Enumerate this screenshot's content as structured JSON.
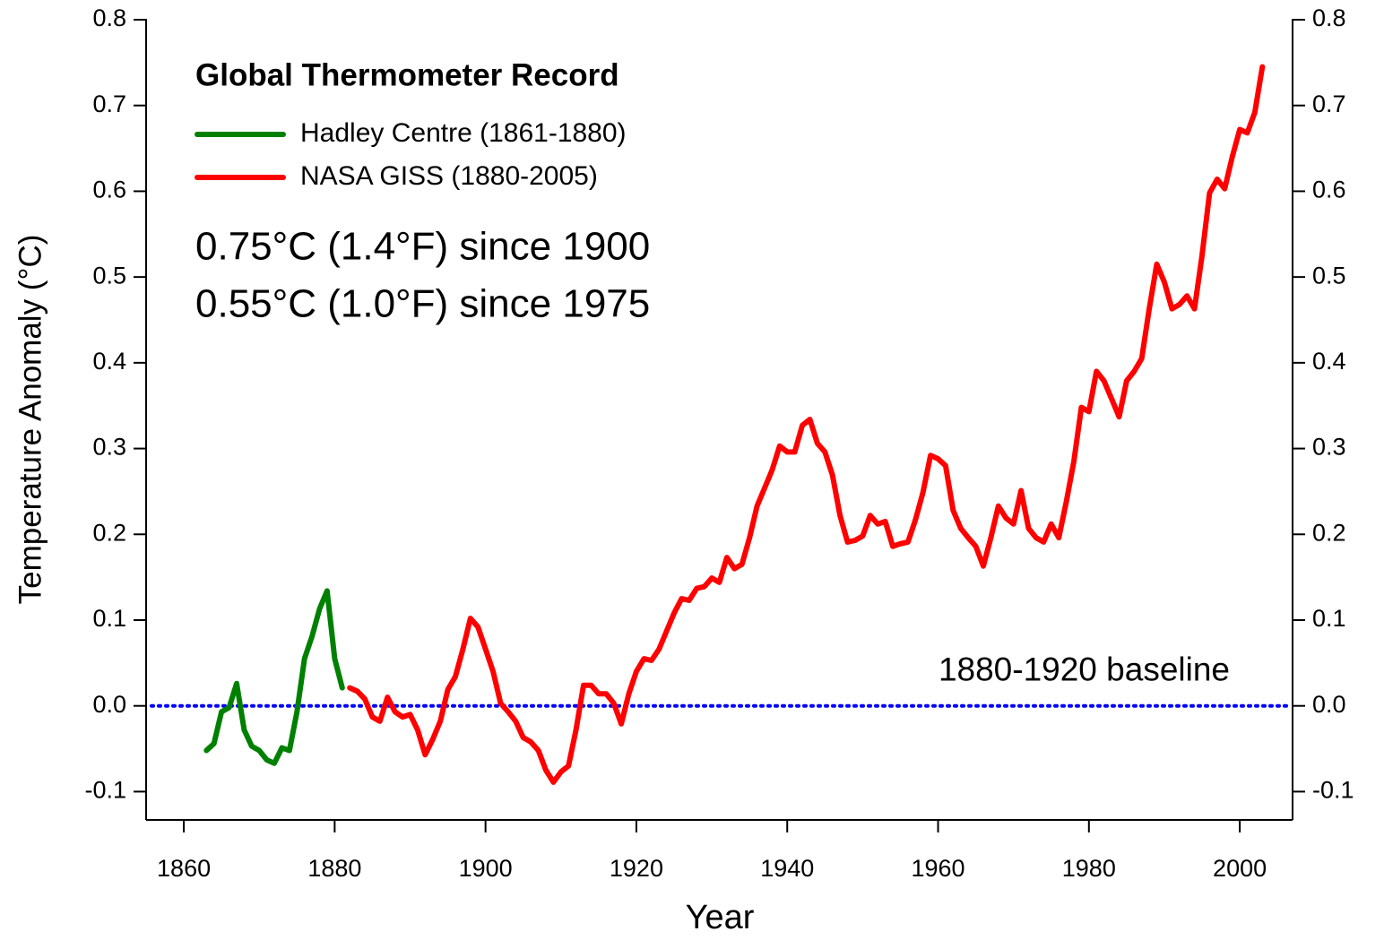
{
  "chart_data": {
    "type": "line",
    "title": "Global Thermometer Record",
    "xlabel": "Year",
    "ylabel": "Temperature Anomaly (°C)",
    "annotations": [
      "0.75°C (1.4°F) since 1900",
      "0.55°C (1.0°F)  since 1975"
    ],
    "baseline": {
      "value": 0,
      "label": "1880-1920 baseline",
      "color": "#0000ff"
    },
    "xlim": [
      1855,
      2007
    ],
    "xticks": [
      1860,
      1880,
      1900,
      1920,
      1940,
      1960,
      1980,
      2000
    ],
    "ylim": [
      -0.133,
      0.8
    ],
    "yticks": [
      -0.1,
      {
        "value": 0,
        "label": "0.0"
      },
      0.1,
      0.2,
      0.3,
      0.4,
      0.5,
      0.6,
      0.7,
      0.8
    ],
    "right_axis_ticks": true,
    "series": [
      {
        "name": "Hadley Centre (1861-1880)",
        "color": "#008000",
        "x": [
          1863,
          1864,
          1865,
          1866,
          1867,
          1868,
          1869,
          1870,
          1871,
          1872,
          1873,
          1874,
          1875,
          1876,
          1877,
          1878,
          1879,
          1880,
          1881
        ],
        "values": [
          -0.052,
          -0.044,
          -0.007,
          -0.002,
          0.026,
          -0.028,
          -0.047,
          -0.052,
          -0.063,
          -0.067,
          -0.049,
          -0.052,
          -0.007,
          0.055,
          0.081,
          0.113,
          0.134,
          0.055,
          0.021
        ]
      },
      {
        "name": "NASA GISS (1880-2005)",
        "color": "#ff0000",
        "x": [
          1882,
          1883,
          1884,
          1885,
          1886,
          1887,
          1888,
          1889,
          1890,
          1891,
          1892,
          1893,
          1894,
          1895,
          1896,
          1897,
          1898,
          1899,
          1900,
          1901,
          1902,
          1903,
          1904,
          1905,
          1906,
          1907,
          1908,
          1909,
          1910,
          1911,
          1912,
          1913,
          1914,
          1915,
          1916,
          1917,
          1918,
          1919,
          1920,
          1921,
          1922,
          1923,
          1924,
          1925,
          1926,
          1927,
          1928,
          1929,
          1930,
          1931,
          1932,
          1933,
          1934,
          1935,
          1936,
          1937,
          1938,
          1939,
          1940,
          1941,
          1942,
          1943,
          1944,
          1945,
          1946,
          1947,
          1948,
          1949,
          1950,
          1951,
          1952,
          1953,
          1954,
          1955,
          1956,
          1957,
          1958,
          1959,
          1960,
          1961,
          1962,
          1963,
          1964,
          1965,
          1966,
          1967,
          1968,
          1969,
          1970,
          1971,
          1972,
          1973,
          1974,
          1975,
          1976,
          1977,
          1978,
          1979,
          1980,
          1981,
          1982,
          1983,
          1984,
          1985,
          1986,
          1987,
          1988,
          1989,
          1990,
          1991,
          1992,
          1993,
          1994,
          1995,
          1996,
          1997,
          1998,
          1999,
          2000,
          2001,
          2002,
          2003
        ],
        "values": [
          0.021,
          0.017,
          0.008,
          -0.013,
          -0.018,
          0.01,
          -0.007,
          -0.013,
          -0.01,
          -0.028,
          -0.057,
          -0.039,
          -0.018,
          0.019,
          0.034,
          0.066,
          0.102,
          0.092,
          0.066,
          0.04,
          0.003,
          -0.007,
          -0.018,
          -0.037,
          -0.042,
          -0.052,
          -0.075,
          -0.089,
          -0.077,
          -0.07,
          -0.028,
          0.024,
          0.024,
          0.014,
          0.014,
          0.003,
          -0.021,
          0.014,
          0.04,
          0.055,
          0.053,
          0.066,
          0.087,
          0.108,
          0.125,
          0.123,
          0.137,
          0.139,
          0.149,
          0.144,
          0.173,
          0.16,
          0.165,
          0.196,
          0.233,
          0.254,
          0.275,
          0.303,
          0.296,
          0.296,
          0.327,
          0.334,
          0.306,
          0.296,
          0.269,
          0.222,
          0.191,
          0.193,
          0.198,
          0.222,
          0.212,
          0.215,
          0.186,
          0.189,
          0.191,
          0.217,
          0.249,
          0.292,
          0.288,
          0.28,
          0.228,
          0.207,
          0.196,
          0.186,
          0.163,
          0.196,
          0.233,
          0.219,
          0.212,
          0.251,
          0.207,
          0.196,
          0.191,
          0.212,
          0.196,
          0.238,
          0.285,
          0.348,
          0.343,
          0.39,
          0.379,
          0.358,
          0.337,
          0.379,
          0.39,
          0.405,
          0.463,
          0.515,
          0.494,
          0.463,
          0.468,
          0.478,
          0.463,
          0.525,
          0.598,
          0.614,
          0.603,
          0.64,
          0.672,
          0.668,
          0.692,
          0.745
        ]
      }
    ]
  }
}
